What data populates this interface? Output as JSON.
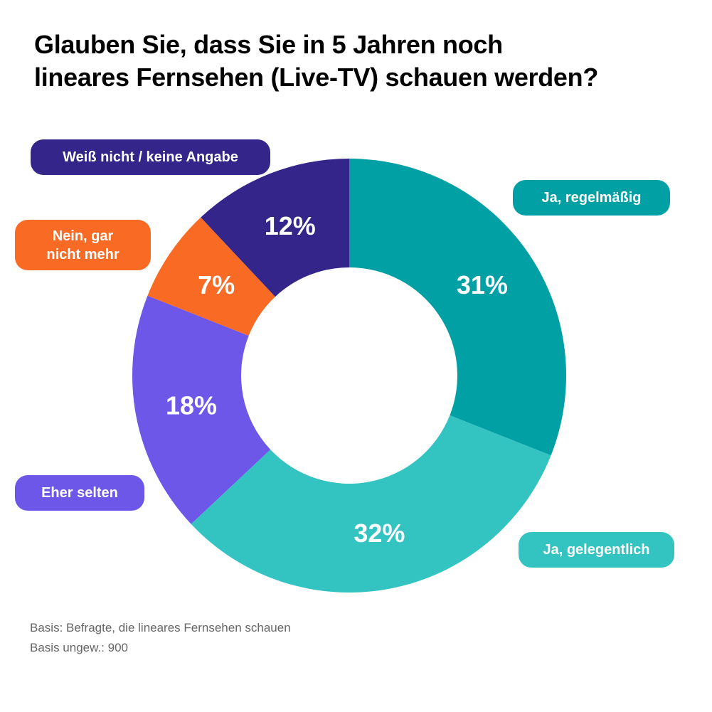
{
  "title": {
    "line1": "Glauben Sie, dass Sie in 5 Jahren noch",
    "line2": "lineares Fernsehen (Live-TV) schauen werden?"
  },
  "chart_data": {
    "type": "pie",
    "donut": true,
    "title": "Glauben Sie, dass Sie in 5 Jahren noch lineares Fernsehen (Live-TV) schauen werden?",
    "categories": [
      "Ja, regelmäßig",
      "Ja, gelegentlich",
      "Eher selten",
      "Nein, gar nicht mehr",
      "Weiß nicht / keine Angabe"
    ],
    "values": [
      31,
      32,
      18,
      7,
      12
    ],
    "labels": [
      "31%",
      "32%",
      "18%",
      "7%",
      "12%"
    ],
    "colors": [
      "#00a0a5",
      "#33c4c2",
      "#6c57e8",
      "#f96a24",
      "#33258a"
    ]
  },
  "footnote": {
    "line1": "Basis: Befragte, die lineares Fernsehen schauen",
    "line2": "Basis ungew.: 900"
  }
}
